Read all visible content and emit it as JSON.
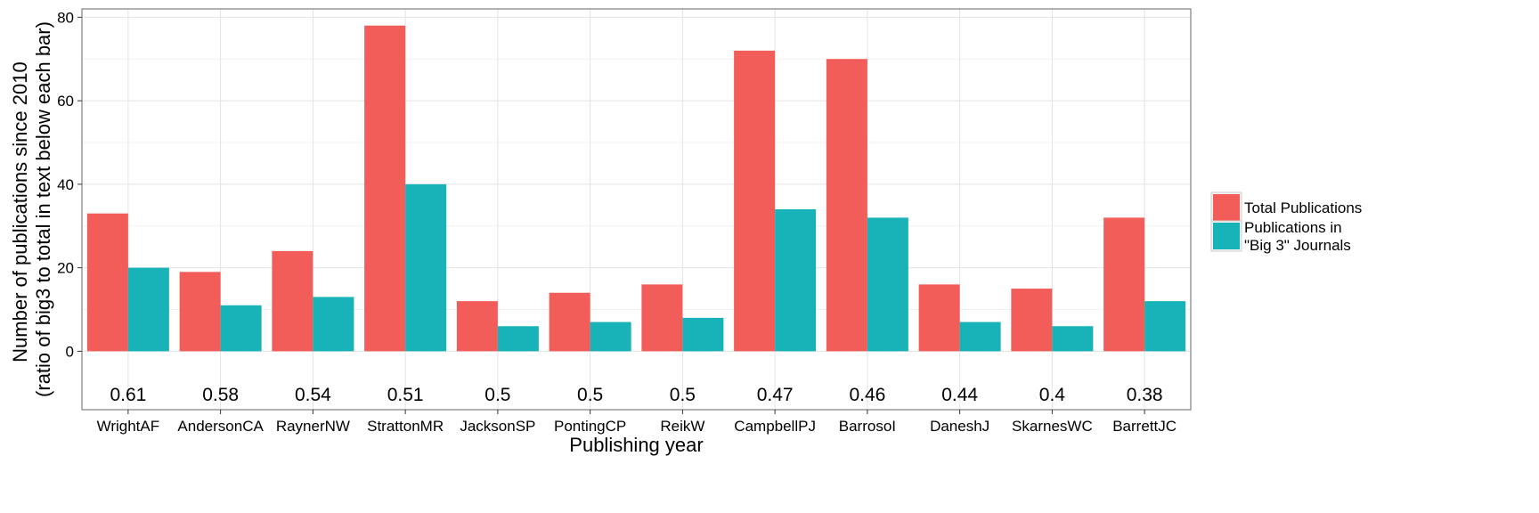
{
  "chart_data": {
    "type": "bar",
    "categories": [
      "WrightAF",
      "AndersonCA",
      "RaynerNW",
      "StrattonMR",
      "JacksonSP",
      "PontingCP",
      "ReikW",
      "CampbellPJ",
      "BarrosoI",
      "DaneshJ",
      "SkarnesWC",
      "BarrettJC"
    ],
    "series": [
      {
        "name": "Total Publications",
        "color": "#F25D5A",
        "values": [
          33,
          19,
          24,
          78,
          12,
          14,
          16,
          72,
          70,
          16,
          15,
          32
        ]
      },
      {
        "name": "Publications in \"Big 3\" Journals",
        "name_lines": [
          "Publications in",
          "\"Big 3\" Journals"
        ],
        "color": "#18B3B8",
        "values": [
          20,
          11,
          13,
          40,
          6,
          7,
          8,
          34,
          32,
          7,
          6,
          12
        ]
      }
    ],
    "ratios": [
      "0.61",
      "0.58",
      "0.54",
      "0.51",
      "0.5",
      "0.5",
      "0.5",
      "0.47",
      "0.46",
      "0.44",
      "0.4",
      "0.38"
    ],
    "xlabel": "Publishing year",
    "ylabel_lines": [
      "Number of publications since 2010",
      "(ratio of big3 to total in text below each bar)"
    ],
    "y_ticks": [
      0,
      20,
      40,
      60,
      80
    ],
    "ylim": [
      -14,
      82
    ],
    "grid": true,
    "legend_position": "right"
  }
}
